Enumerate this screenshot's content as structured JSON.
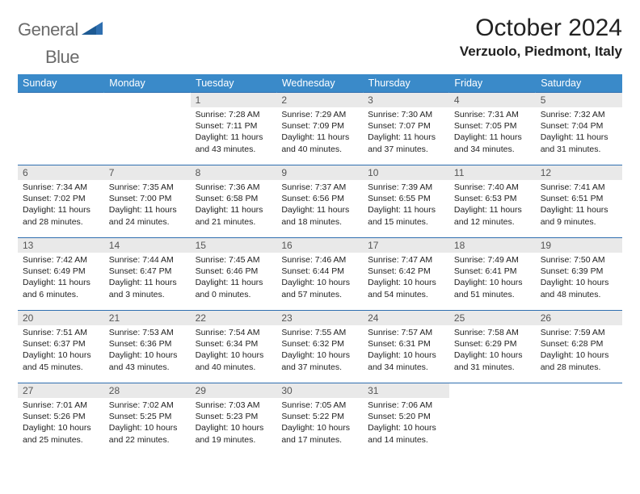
{
  "brand": {
    "word1": "General",
    "word2": "Blue"
  },
  "title": "October 2024",
  "location": "Verzuolo, Piedmont, Italy",
  "colors": {
    "header_bg": "#3a8ac9",
    "row_border": "#2f6fb0",
    "daynum_bg": "#e9e9e9",
    "text": "#222222",
    "logo_gray": "#6b6b6b",
    "logo_blue": "#2f6fb0"
  },
  "weekdays": [
    "Sunday",
    "Monday",
    "Tuesday",
    "Wednesday",
    "Thursday",
    "Friday",
    "Saturday"
  ],
  "weeks": [
    [
      null,
      null,
      {
        "n": "1",
        "sr": "Sunrise: 7:28 AM",
        "ss": "Sunset: 7:11 PM",
        "d1": "Daylight: 11 hours",
        "d2": "and 43 minutes."
      },
      {
        "n": "2",
        "sr": "Sunrise: 7:29 AM",
        "ss": "Sunset: 7:09 PM",
        "d1": "Daylight: 11 hours",
        "d2": "and 40 minutes."
      },
      {
        "n": "3",
        "sr": "Sunrise: 7:30 AM",
        "ss": "Sunset: 7:07 PM",
        "d1": "Daylight: 11 hours",
        "d2": "and 37 minutes."
      },
      {
        "n": "4",
        "sr": "Sunrise: 7:31 AM",
        "ss": "Sunset: 7:05 PM",
        "d1": "Daylight: 11 hours",
        "d2": "and 34 minutes."
      },
      {
        "n": "5",
        "sr": "Sunrise: 7:32 AM",
        "ss": "Sunset: 7:04 PM",
        "d1": "Daylight: 11 hours",
        "d2": "and 31 minutes."
      }
    ],
    [
      {
        "n": "6",
        "sr": "Sunrise: 7:34 AM",
        "ss": "Sunset: 7:02 PM",
        "d1": "Daylight: 11 hours",
        "d2": "and 28 minutes."
      },
      {
        "n": "7",
        "sr": "Sunrise: 7:35 AM",
        "ss": "Sunset: 7:00 PM",
        "d1": "Daylight: 11 hours",
        "d2": "and 24 minutes."
      },
      {
        "n": "8",
        "sr": "Sunrise: 7:36 AM",
        "ss": "Sunset: 6:58 PM",
        "d1": "Daylight: 11 hours",
        "d2": "and 21 minutes."
      },
      {
        "n": "9",
        "sr": "Sunrise: 7:37 AM",
        "ss": "Sunset: 6:56 PM",
        "d1": "Daylight: 11 hours",
        "d2": "and 18 minutes."
      },
      {
        "n": "10",
        "sr": "Sunrise: 7:39 AM",
        "ss": "Sunset: 6:55 PM",
        "d1": "Daylight: 11 hours",
        "d2": "and 15 minutes."
      },
      {
        "n": "11",
        "sr": "Sunrise: 7:40 AM",
        "ss": "Sunset: 6:53 PM",
        "d1": "Daylight: 11 hours",
        "d2": "and 12 minutes."
      },
      {
        "n": "12",
        "sr": "Sunrise: 7:41 AM",
        "ss": "Sunset: 6:51 PM",
        "d1": "Daylight: 11 hours",
        "d2": "and 9 minutes."
      }
    ],
    [
      {
        "n": "13",
        "sr": "Sunrise: 7:42 AM",
        "ss": "Sunset: 6:49 PM",
        "d1": "Daylight: 11 hours",
        "d2": "and 6 minutes."
      },
      {
        "n": "14",
        "sr": "Sunrise: 7:44 AM",
        "ss": "Sunset: 6:47 PM",
        "d1": "Daylight: 11 hours",
        "d2": "and 3 minutes."
      },
      {
        "n": "15",
        "sr": "Sunrise: 7:45 AM",
        "ss": "Sunset: 6:46 PM",
        "d1": "Daylight: 11 hours",
        "d2": "and 0 minutes."
      },
      {
        "n": "16",
        "sr": "Sunrise: 7:46 AM",
        "ss": "Sunset: 6:44 PM",
        "d1": "Daylight: 10 hours",
        "d2": "and 57 minutes."
      },
      {
        "n": "17",
        "sr": "Sunrise: 7:47 AM",
        "ss": "Sunset: 6:42 PM",
        "d1": "Daylight: 10 hours",
        "d2": "and 54 minutes."
      },
      {
        "n": "18",
        "sr": "Sunrise: 7:49 AM",
        "ss": "Sunset: 6:41 PM",
        "d1": "Daylight: 10 hours",
        "d2": "and 51 minutes."
      },
      {
        "n": "19",
        "sr": "Sunrise: 7:50 AM",
        "ss": "Sunset: 6:39 PM",
        "d1": "Daylight: 10 hours",
        "d2": "and 48 minutes."
      }
    ],
    [
      {
        "n": "20",
        "sr": "Sunrise: 7:51 AM",
        "ss": "Sunset: 6:37 PM",
        "d1": "Daylight: 10 hours",
        "d2": "and 45 minutes."
      },
      {
        "n": "21",
        "sr": "Sunrise: 7:53 AM",
        "ss": "Sunset: 6:36 PM",
        "d1": "Daylight: 10 hours",
        "d2": "and 43 minutes."
      },
      {
        "n": "22",
        "sr": "Sunrise: 7:54 AM",
        "ss": "Sunset: 6:34 PM",
        "d1": "Daylight: 10 hours",
        "d2": "and 40 minutes."
      },
      {
        "n": "23",
        "sr": "Sunrise: 7:55 AM",
        "ss": "Sunset: 6:32 PM",
        "d1": "Daylight: 10 hours",
        "d2": "and 37 minutes."
      },
      {
        "n": "24",
        "sr": "Sunrise: 7:57 AM",
        "ss": "Sunset: 6:31 PM",
        "d1": "Daylight: 10 hours",
        "d2": "and 34 minutes."
      },
      {
        "n": "25",
        "sr": "Sunrise: 7:58 AM",
        "ss": "Sunset: 6:29 PM",
        "d1": "Daylight: 10 hours",
        "d2": "and 31 minutes."
      },
      {
        "n": "26",
        "sr": "Sunrise: 7:59 AM",
        "ss": "Sunset: 6:28 PM",
        "d1": "Daylight: 10 hours",
        "d2": "and 28 minutes."
      }
    ],
    [
      {
        "n": "27",
        "sr": "Sunrise: 7:01 AM",
        "ss": "Sunset: 5:26 PM",
        "d1": "Daylight: 10 hours",
        "d2": "and 25 minutes."
      },
      {
        "n": "28",
        "sr": "Sunrise: 7:02 AM",
        "ss": "Sunset: 5:25 PM",
        "d1": "Daylight: 10 hours",
        "d2": "and 22 minutes."
      },
      {
        "n": "29",
        "sr": "Sunrise: 7:03 AM",
        "ss": "Sunset: 5:23 PM",
        "d1": "Daylight: 10 hours",
        "d2": "and 19 minutes."
      },
      {
        "n": "30",
        "sr": "Sunrise: 7:05 AM",
        "ss": "Sunset: 5:22 PM",
        "d1": "Daylight: 10 hours",
        "d2": "and 17 minutes."
      },
      {
        "n": "31",
        "sr": "Sunrise: 7:06 AM",
        "ss": "Sunset: 5:20 PM",
        "d1": "Daylight: 10 hours",
        "d2": "and 14 minutes."
      },
      null,
      null
    ]
  ]
}
